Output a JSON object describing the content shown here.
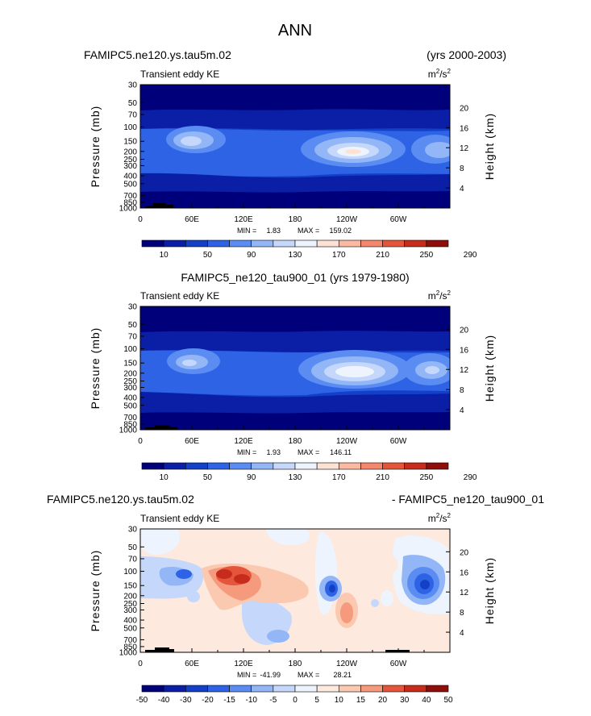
{
  "figure_title": "ANN",
  "colors": {
    "abs_levels": [
      "#00007a",
      "#0a1fa6",
      "#1440c8",
      "#2e63e6",
      "#5a8cf2",
      "#93b6f7",
      "#c5d8fb",
      "#eef4fe",
      "#fde2d4",
      "#fbb9a2",
      "#f4876c",
      "#e4553c",
      "#c62b1c",
      "#8e0f0a"
    ],
    "diff_levels": [
      "#00007a",
      "#0a1fa6",
      "#1440c8",
      "#2e63e6",
      "#5a8cf2",
      "#93b6f7",
      "#c5d8fb",
      "#eef4fe",
      "#fde9de",
      "#fbc8b0",
      "#f59a7c",
      "#e4553c",
      "#c62b1c",
      "#8e0f0a"
    ]
  },
  "chart_data": [
    {
      "type": "heatmap",
      "case_name": "FAMIPC5.ne120.ys.tau5m.02",
      "period": "(yrs 2000-2003)",
      "variable": "Transient eddy KE",
      "units_base": "m",
      "units_exp1": "2",
      "units_mid": "/s",
      "units_exp2": "2",
      "ylabel_left": "Pressure (mb)",
      "ylabel_right": "Height (km)",
      "x_ticks": [
        "0",
        "60E",
        "120E",
        "180",
        "120W",
        "60W"
      ],
      "y_ticks": [
        "30",
        "50",
        "70",
        "100",
        "150",
        "200",
        "250",
        "300",
        "400",
        "500",
        "700",
        "850",
        "1000"
      ],
      "y2_ticks": [
        "20",
        "16",
        "12",
        "8",
        "4"
      ],
      "min_label": "MIN =",
      "min_value": "1.83",
      "max_label": "MAX =",
      "max_value": "159.02",
      "colorbar_labels": [
        "10",
        "50",
        "90",
        "130",
        "170",
        "210",
        "250",
        "290"
      ],
      "colorbar_levels": [
        10,
        30,
        50,
        70,
        90,
        110,
        130,
        150,
        170,
        190,
        210,
        230,
        250,
        270,
        290
      ],
      "jet_maxima": [
        {
          "lon": 65,
          "pressure": 150,
          "value": 135
        },
        {
          "lon": 220,
          "pressure": 200,
          "value": 159
        },
        {
          "lon": 330,
          "pressure": 200,
          "value": 120
        }
      ]
    },
    {
      "type": "heatmap",
      "title_line": "FAMIPC5_ne120_tau900_01 (yrs 1979-1980)",
      "variable": "Transient eddy KE",
      "units_base": "m",
      "units_exp1": "2",
      "units_mid": "/s",
      "units_exp2": "2",
      "ylabel_left": "Pressure (mb)",
      "ylabel_right": "Height (km)",
      "x_ticks": [
        "0",
        "60E",
        "120E",
        "180",
        "120W",
        "60W"
      ],
      "y_ticks": [
        "30",
        "50",
        "70",
        "100",
        "150",
        "200",
        "250",
        "300",
        "400",
        "500",
        "700",
        "850",
        "1000"
      ],
      "y2_ticks": [
        "20",
        "16",
        "12",
        "8",
        "4"
      ],
      "min_label": "MIN =",
      "min_value": "1.93",
      "max_label": "MAX =",
      "max_value": "146.11",
      "colorbar_labels": [
        "10",
        "50",
        "90",
        "130",
        "170",
        "210",
        "250",
        "290"
      ],
      "colorbar_levels": [
        10,
        30,
        50,
        70,
        90,
        110,
        130,
        150,
        170,
        190,
        210,
        230,
        250,
        270,
        290
      ],
      "jet_maxima": [
        {
          "lon": 65,
          "pressure": 150,
          "value": 120
        },
        {
          "lon": 225,
          "pressure": 200,
          "value": 146
        },
        {
          "lon": 340,
          "pressure": 200,
          "value": 115
        }
      ]
    },
    {
      "type": "heatmap",
      "case_name": "FAMIPC5.ne120.ys.tau5m.02",
      "minus_case": "- FAMIPC5_ne120_tau900_01",
      "variable": "Transient eddy KE",
      "units_base": "m",
      "units_exp1": "2",
      "units_mid": "/s",
      "units_exp2": "2",
      "ylabel_left": "Pressure (mb)",
      "ylabel_right": "Height (km)",
      "x_ticks": [
        "0",
        "60E",
        "120E",
        "180",
        "120W",
        "60W"
      ],
      "y_ticks": [
        "30",
        "50",
        "70",
        "100",
        "150",
        "200",
        "250",
        "300",
        "400",
        "500",
        "700",
        "850",
        "1000"
      ],
      "y2_ticks": [
        "20",
        "16",
        "12",
        "8",
        "4"
      ],
      "min_label": "MIN =",
      "min_value": "-41.99",
      "max_label": "MAX =",
      "max_value": "28.21",
      "colorbar_labels": [
        "-50",
        "-40",
        "-30",
        "-20",
        "-15",
        "-10",
        "-5",
        "0",
        "5",
        "10",
        "15",
        "20",
        "30",
        "40",
        "50"
      ],
      "colorbar_levels": [
        -50,
        -40,
        -30,
        -20,
        -15,
        -10,
        -5,
        0,
        5,
        10,
        15,
        20,
        30,
        40,
        50
      ]
    }
  ]
}
